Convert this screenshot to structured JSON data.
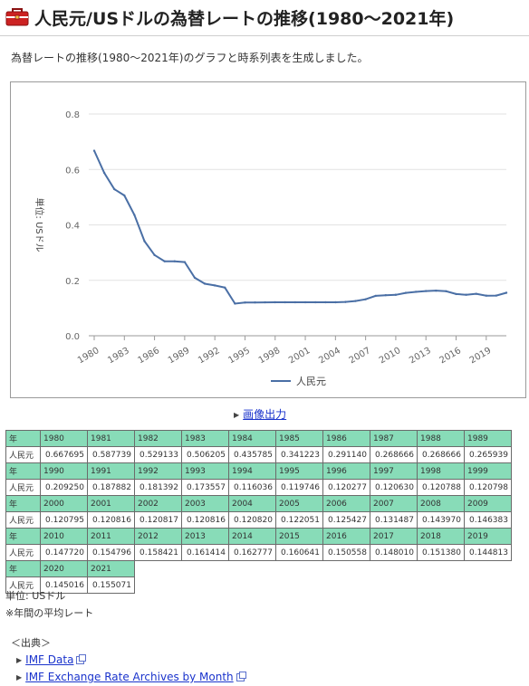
{
  "page": {
    "title": "人民元/USドルの為替レートの推移(1980～2021年)",
    "intro": "為替レートの推移(1980～2021年)のグラフと時系列表を生成しました。",
    "export_link": "画像出力",
    "colors": {
      "line": "#4a6fa5",
      "table_header": "#88dcb8",
      "link": "#1a33cc",
      "icon": "#cc2222"
    }
  },
  "chart_data": {
    "type": "line",
    "ylabel": "単位: USドル",
    "ylim": [
      0,
      0.8
    ],
    "yticks": [
      "0.0",
      "0.2",
      "0.4",
      "0.6",
      "0.8"
    ],
    "xtick_labels": [
      "1980",
      "1983",
      "1986",
      "1989",
      "1992",
      "1995",
      "1998",
      "2001",
      "2004",
      "2007",
      "2010",
      "2013",
      "2016",
      "2019"
    ],
    "x": [
      1980,
      1981,
      1982,
      1983,
      1984,
      1985,
      1986,
      1987,
      1988,
      1989,
      1990,
      1991,
      1992,
      1993,
      1994,
      1995,
      1996,
      1997,
      1998,
      1999,
      2000,
      2001,
      2002,
      2003,
      2004,
      2005,
      2006,
      2007,
      2008,
      2009,
      2010,
      2011,
      2012,
      2013,
      2014,
      2015,
      2016,
      2017,
      2018,
      2019,
      2020,
      2021
    ],
    "series": [
      {
        "name": "人民元",
        "values": [
          0.667695,
          0.587739,
          0.529133,
          0.506205,
          0.435785,
          0.341223,
          0.29114,
          0.268666,
          0.268666,
          0.265939,
          0.20925,
          0.187882,
          0.181392,
          0.173557,
          0.116036,
          0.119746,
          0.120277,
          0.12063,
          0.120788,
          0.120798,
          0.120795,
          0.120816,
          0.120817,
          0.120816,
          0.12082,
          0.122051,
          0.125427,
          0.131487,
          0.14397,
          0.146383,
          0.14772,
          0.154796,
          0.158421,
          0.161414,
          0.162777,
          0.160641,
          0.150558,
          0.14801,
          0.15138,
          0.144813,
          0.145016,
          0.155071
        ]
      }
    ],
    "grid": "horizontal",
    "legend": "bottom"
  },
  "table": {
    "year_label": "年",
    "row_label": "人民元",
    "rows": [
      {
        "years": [
          "1980",
          "1981",
          "1982",
          "1983",
          "1984",
          "1985",
          "1986",
          "1987",
          "1988",
          "1989"
        ],
        "values": [
          "0.667695",
          "0.587739",
          "0.529133",
          "0.506205",
          "0.435785",
          "0.341223",
          "0.291140",
          "0.268666",
          "0.268666",
          "0.265939"
        ]
      },
      {
        "years": [
          "1990",
          "1991",
          "1992",
          "1993",
          "1994",
          "1995",
          "1996",
          "1997",
          "1998",
          "1999"
        ],
        "values": [
          "0.209250",
          "0.187882",
          "0.181392",
          "0.173557",
          "0.116036",
          "0.119746",
          "0.120277",
          "0.120630",
          "0.120788",
          "0.120798"
        ]
      },
      {
        "years": [
          "2000",
          "2001",
          "2002",
          "2003",
          "2004",
          "2005",
          "2006",
          "2007",
          "2008",
          "2009"
        ],
        "values": [
          "0.120795",
          "0.120816",
          "0.120817",
          "0.120816",
          "0.120820",
          "0.122051",
          "0.125427",
          "0.131487",
          "0.143970",
          "0.146383"
        ]
      },
      {
        "years": [
          "2010",
          "2011",
          "2012",
          "2013",
          "2014",
          "2015",
          "2016",
          "2017",
          "2018",
          "2019"
        ],
        "values": [
          "0.147720",
          "0.154796",
          "0.158421",
          "0.161414",
          "0.162777",
          "0.160641",
          "0.150558",
          "0.148010",
          "0.151380",
          "0.144813"
        ]
      },
      {
        "years": [
          "2020",
          "2021"
        ],
        "values": [
          "0.145016",
          "0.155071"
        ]
      }
    ]
  },
  "notes": {
    "unit": "単位: USドル",
    "average": "※年間の平均レート"
  },
  "source": {
    "heading": "＜出典＞",
    "links": [
      "IMF Data",
      "IMF Exchange Rate Archives by Month"
    ]
  }
}
